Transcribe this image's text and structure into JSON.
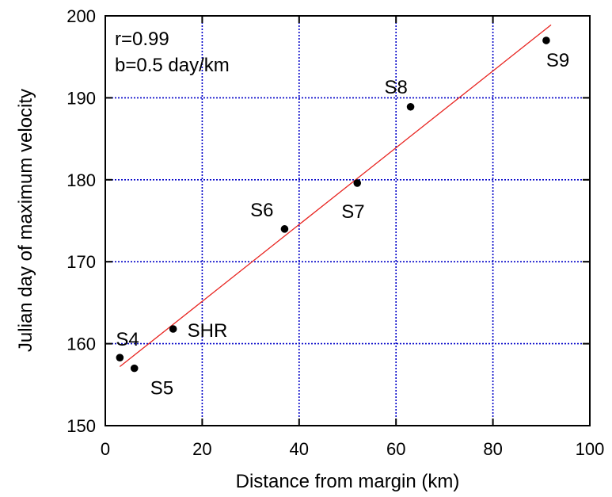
{
  "chart_data": {
    "type": "scatter",
    "title": "",
    "xlabel": "Distance from margin (km)",
    "ylabel": "Julian day of maximum velocity",
    "xlim": [
      0,
      100
    ],
    "ylim": [
      150,
      200
    ],
    "xticks": [
      0,
      20,
      40,
      60,
      80,
      100
    ],
    "yticks": [
      150,
      160,
      170,
      180,
      190,
      200
    ],
    "grid": true,
    "annotations": [
      "r=0.99",
      "b=0.5 day/km"
    ],
    "points": [
      {
        "label": "S4",
        "x": 3,
        "y": 158.3
      },
      {
        "label": "S5",
        "x": 6,
        "y": 157
      },
      {
        "label": "SHR",
        "x": 14,
        "y": 161.8
      },
      {
        "label": "S6",
        "x": 37,
        "y": 174
      },
      {
        "label": "S7",
        "x": 52,
        "y": 179.6
      },
      {
        "label": "S8",
        "x": 63,
        "y": 188.9
      },
      {
        "label": "S9",
        "x": 91,
        "y": 197
      }
    ],
    "fit_line": {
      "x": [
        3,
        92
      ],
      "y": [
        157.2,
        198.9
      ]
    }
  },
  "colors": {
    "grid": "#0000c8",
    "fit_line": "#e8231f",
    "points": "#000000"
  }
}
